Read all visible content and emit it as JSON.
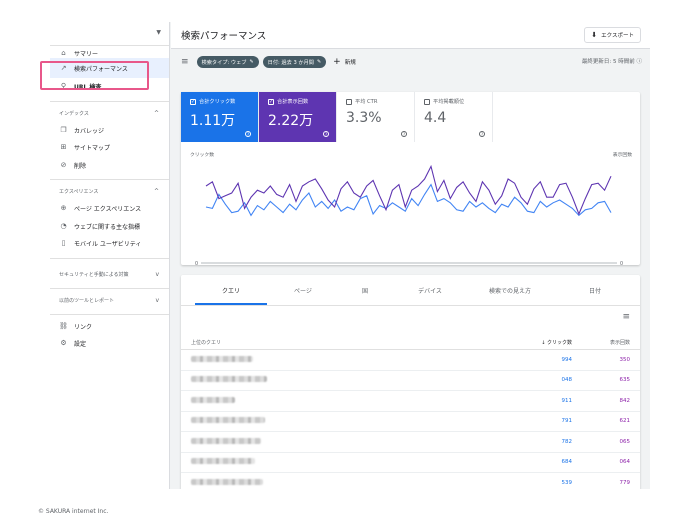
{
  "sidebar": {
    "top_items": [
      {
        "label": "サマリー",
        "icon": "home-icon"
      },
      {
        "label": "検索パフォーマンス",
        "icon": "trending-up-icon"
      },
      {
        "label": "URL 検査",
        "icon": "search-icon"
      }
    ],
    "sections": [
      {
        "title": "インデックス",
        "items": [
          {
            "label": "カバレッジ",
            "icon": "file-copy-icon"
          },
          {
            "label": "サイトマップ",
            "icon": "sitemap-icon"
          },
          {
            "label": "削除",
            "icon": "eye-off-icon"
          }
        ]
      },
      {
        "title": "エクスペリエンス",
        "items": [
          {
            "label": "ページ エクスペリエンス",
            "icon": "plus-circle-icon"
          },
          {
            "label": "ウェブに関する主な指標",
            "icon": "gauge-icon"
          },
          {
            "label": "モバイル ユーザビリティ",
            "icon": "phone-icon"
          }
        ]
      }
    ],
    "collapsed_sections": [
      {
        "title": "セキュリティと手動による対策"
      },
      {
        "title": "以前のツールとレポート"
      }
    ],
    "bottom_items": [
      {
        "label": "リンク",
        "icon": "links-icon"
      },
      {
        "label": "設定",
        "icon": "gear-icon"
      }
    ]
  },
  "header": {
    "title": "検索パフォーマンス",
    "export_label": "エクスポート"
  },
  "filters": {
    "chips": [
      "検索タイプ: ウェブ",
      "日付: 過去 3 か月間"
    ],
    "new_label": "新規",
    "last_updated": "最終更新日: 5 時間前"
  },
  "metrics": [
    {
      "label": "合計クリック数",
      "value": "1.11万",
      "checked": true,
      "color": "#1a73e8"
    },
    {
      "label": "合計表示回数",
      "value": "2.22万",
      "checked": true,
      "color": "#5e35b1"
    },
    {
      "label": "平均 CTR",
      "value": "3.3%",
      "checked": false
    },
    {
      "label": "平均掲載順位",
      "value": "4.4",
      "checked": false
    }
  ],
  "chart_data": {
    "type": "line",
    "left_axis_label": "クリック数",
    "right_axis_label": "表示回数",
    "left_axis_min_tick": "0",
    "right_axis_min_tick": "0",
    "series": [
      {
        "name": "クリック数",
        "color": "#4285f4",
        "values": [
          40,
          39,
          49,
          42,
          36,
          37,
          43,
          34,
          41,
          38,
          44,
          40,
          36,
          42,
          38,
          45,
          50,
          40,
          44,
          39,
          45,
          37,
          40,
          38,
          46,
          48,
          35,
          41,
          39,
          43,
          40,
          37,
          46,
          41,
          49,
          56,
          44,
          46,
          43,
          38,
          37,
          44,
          40,
          43,
          39,
          36,
          42,
          40,
          47,
          43,
          37,
          36,
          44,
          40,
          43,
          45,
          42,
          39,
          34,
          38,
          39,
          43,
          44,
          36
        ]
      },
      {
        "name": "表示回数",
        "color": "#5e35b1",
        "values": [
          55,
          58,
          46,
          48,
          50,
          57,
          39,
          47,
          52,
          50,
          55,
          49,
          47,
          56,
          44,
          55,
          58,
          60,
          53,
          45,
          40,
          53,
          58,
          50,
          47,
          55,
          59,
          48,
          38,
          52,
          56,
          40,
          52,
          55,
          60,
          69,
          51,
          59,
          46,
          54,
          58,
          50,
          44,
          58,
          52,
          42,
          48,
          60,
          57,
          47,
          42,
          53,
          58,
          47,
          47,
          56,
          57,
          47,
          35,
          46,
          56,
          57,
          52,
          62
        ]
      }
    ]
  },
  "tabs": [
    "クエリ",
    "ページ",
    "国",
    "デバイス",
    "検索での見え方",
    "日付"
  ],
  "table": {
    "headers": {
      "query": "上位のクエリ",
      "clicks": "クリック数",
      "impressions": "表示回数"
    },
    "sort_arrow": "↓",
    "rows": [
      {
        "clicks": "994",
        "impressions": "350"
      },
      {
        "clicks": "048",
        "impressions": "635"
      },
      {
        "clicks": "911",
        "impressions": "842"
      },
      {
        "clicks": "791",
        "impressions": "621"
      },
      {
        "clicks": "782",
        "impressions": "065"
      },
      {
        "clicks": "684",
        "impressions": "064"
      },
      {
        "clicks": "539",
        "impressions": "779"
      }
    ]
  },
  "footer": {
    "copyright": "© SAKURA internet Inc."
  }
}
